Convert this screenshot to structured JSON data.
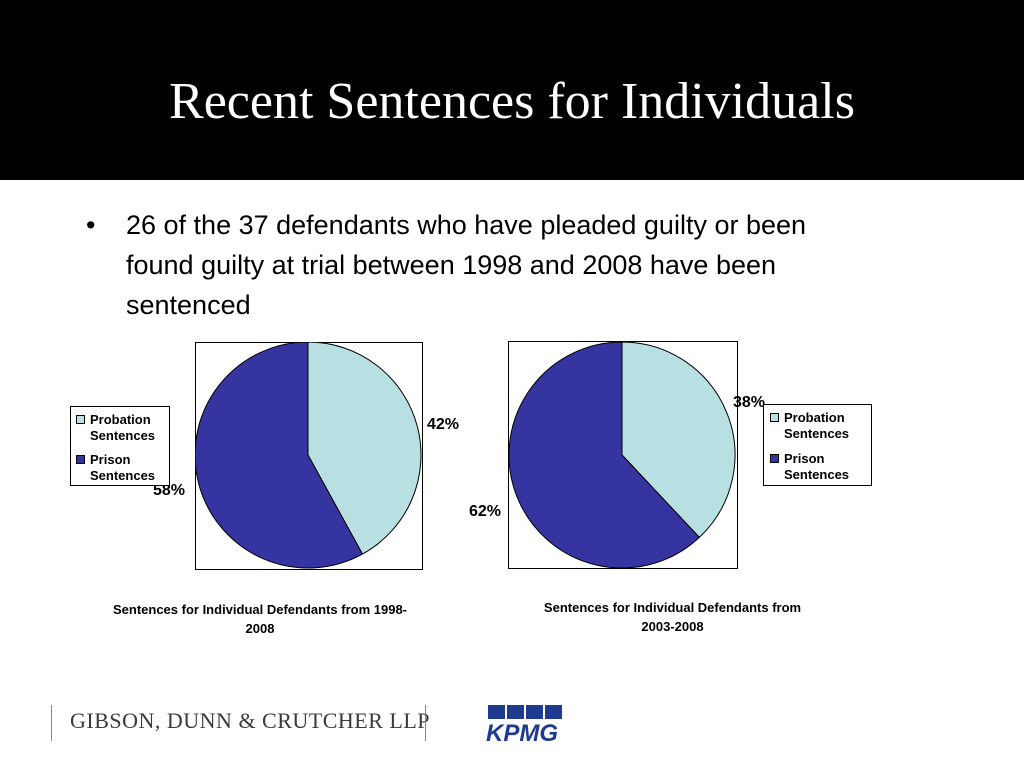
{
  "slide": {
    "title": "Recent Sentences for Individuals",
    "bullet": "26 of the 37 defendants who have pleaded guilty or been found guilty at trial between 1998 and 2008 have been sentenced",
    "bullet_glyph": "•"
  },
  "colors": {
    "probation": "#b8e0e3",
    "prison": "#3634a0",
    "header_bg": "#000000"
  },
  "chart_data": [
    {
      "type": "pie",
      "title": "Sentences for Individual Defendants from 1998-2008",
      "categories": [
        "Probation Sentences",
        "Prison Sentences"
      ],
      "values": [
        42,
        58
      ],
      "labels": [
        "42%",
        "58%"
      ],
      "legend_position": "left"
    },
    {
      "type": "pie",
      "title": "Sentences for Individual Defendants from 2003-2008",
      "categories": [
        "Probation Sentences",
        "Prison Sentences"
      ],
      "values": [
        38,
        62
      ],
      "labels": [
        "38%",
        "62%"
      ],
      "legend_position": "right"
    }
  ],
  "footer": {
    "gibson_logo": "GIBSON, DUNN & CRUTCHER LLP",
    "kpmg_logo": "KPMG"
  }
}
